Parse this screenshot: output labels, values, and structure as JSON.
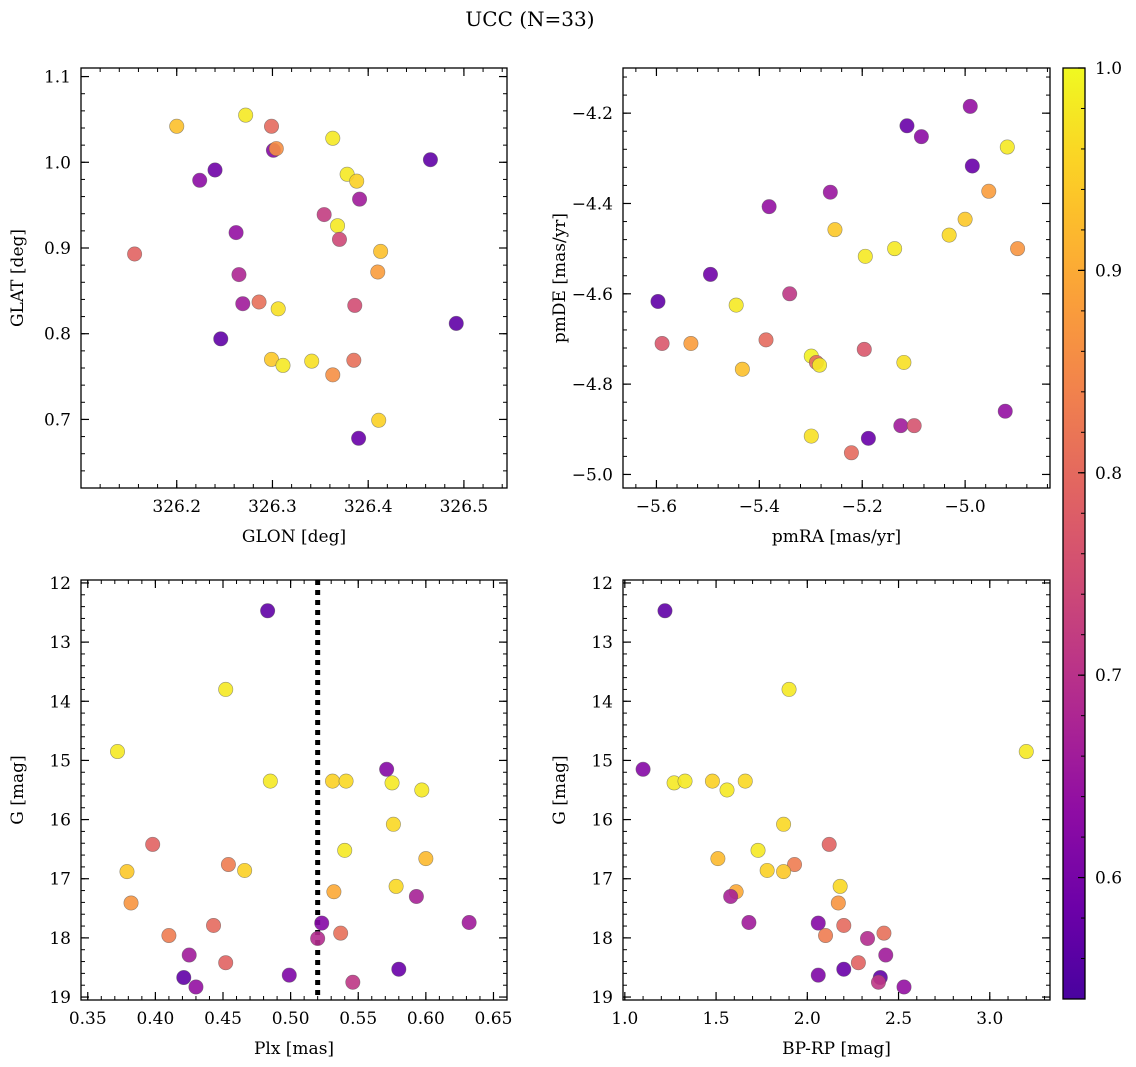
{
  "title": "UCC (N=33)",
  "colorbar": {
    "min": 0.54,
    "max": 1.0,
    "ticks": [
      0.6,
      0.7,
      0.8,
      0.9,
      1.0
    ],
    "tick_labels": [
      "0.6",
      "0.7",
      "0.8",
      "0.9",
      "1.0"
    ],
    "colormap": "plasma"
  },
  "chart_data": [
    {
      "type": "scatter",
      "xlabel": "GLON [deg]",
      "ylabel": "GLAT [deg]",
      "xlim": [
        326.1,
        326.545
      ],
      "ylim": [
        0.62,
        1.11
      ],
      "xticks": [
        326.2,
        326.3,
        326.4,
        326.5
      ],
      "xtick_labels": [
        "326.2",
        "326.3",
        "326.4",
        "326.5"
      ],
      "yticks": [
        0.7,
        0.8,
        0.9,
        1.0,
        1.1
      ],
      "ytick_labels": [
        "0.7",
        "0.8",
        "0.9",
        "1.0",
        "1.1"
      ],
      "grid": false,
      "points": [
        {
          "x": 326.2,
          "y": 1.042,
          "c": 0.93
        },
        {
          "x": 326.272,
          "y": 1.055,
          "c": 0.98
        },
        {
          "x": 326.299,
          "y": 1.042,
          "c": 0.8
        },
        {
          "x": 326.301,
          "y": 1.014,
          "c": 0.62
        },
        {
          "x": 326.304,
          "y": 1.016,
          "c": 0.86
        },
        {
          "x": 326.363,
          "y": 1.028,
          "c": 0.98
        },
        {
          "x": 326.465,
          "y": 1.003,
          "c": 0.57
        },
        {
          "x": 326.224,
          "y": 0.979,
          "c": 0.63
        },
        {
          "x": 326.24,
          "y": 0.991,
          "c": 0.59
        },
        {
          "x": 326.378,
          "y": 0.986,
          "c": 0.98
        },
        {
          "x": 326.388,
          "y": 0.978,
          "c": 0.95
        },
        {
          "x": 326.391,
          "y": 0.957,
          "c": 0.66
        },
        {
          "x": 326.354,
          "y": 0.939,
          "c": 0.72
        },
        {
          "x": 326.368,
          "y": 0.926,
          "c": 0.98
        },
        {
          "x": 326.37,
          "y": 0.91,
          "c": 0.74
        },
        {
          "x": 326.262,
          "y": 0.918,
          "c": 0.64
        },
        {
          "x": 326.156,
          "y": 0.893,
          "c": 0.79
        },
        {
          "x": 326.413,
          "y": 0.896,
          "c": 0.93
        },
        {
          "x": 326.41,
          "y": 0.872,
          "c": 0.88
        },
        {
          "x": 326.265,
          "y": 0.869,
          "c": 0.68
        },
        {
          "x": 326.269,
          "y": 0.835,
          "c": 0.66
        },
        {
          "x": 326.286,
          "y": 0.837,
          "c": 0.81
        },
        {
          "x": 326.306,
          "y": 0.829,
          "c": 0.97
        },
        {
          "x": 326.386,
          "y": 0.833,
          "c": 0.75
        },
        {
          "x": 326.492,
          "y": 0.812,
          "c": 0.57
        },
        {
          "x": 326.246,
          "y": 0.794,
          "c": 0.57
        },
        {
          "x": 326.299,
          "y": 0.77,
          "c": 0.94
        },
        {
          "x": 326.311,
          "y": 0.763,
          "c": 0.98
        },
        {
          "x": 326.341,
          "y": 0.768,
          "c": 0.97
        },
        {
          "x": 326.385,
          "y": 0.769,
          "c": 0.81
        },
        {
          "x": 326.363,
          "y": 0.752,
          "c": 0.86
        },
        {
          "x": 326.411,
          "y": 0.699,
          "c": 0.95
        },
        {
          "x": 326.39,
          "y": 0.678,
          "c": 0.58
        }
      ]
    },
    {
      "type": "scatter",
      "xlabel": "pmRA [mas/yr]",
      "ylabel": "pmDE [mas/yr]",
      "xlim": [
        -5.665,
        -4.835
      ],
      "ylim": [
        -5.03,
        -4.1
      ],
      "xticks": [
        -5.6,
        -5.4,
        -5.2,
        -5.0
      ],
      "xtick_labels": [
        "−5.6",
        "−5.4",
        "−5.2",
        "−5.0"
      ],
      "yticks": [
        -5.0,
        -4.8,
        -4.6,
        -4.4,
        -4.2
      ],
      "ytick_labels": [
        "−5.0",
        "−4.8",
        "−4.6",
        "−4.4",
        "−4.2"
      ],
      "grid": false,
      "points": [
        {
          "x": -4.99,
          "y": -4.185,
          "c": 0.64
        },
        {
          "x": -5.113,
          "y": -4.228,
          "c": 0.58
        },
        {
          "x": -5.085,
          "y": -4.252,
          "c": 0.63
        },
        {
          "x": -4.918,
          "y": -4.275,
          "c": 0.98
        },
        {
          "x": -4.986,
          "y": -4.317,
          "c": 0.58
        },
        {
          "x": -4.954,
          "y": -4.373,
          "c": 0.88
        },
        {
          "x": -5.262,
          "y": -4.375,
          "c": 0.65
        },
        {
          "x": -5.381,
          "y": -4.407,
          "c": 0.64
        },
        {
          "x": -5.0,
          "y": -4.435,
          "c": 0.94
        },
        {
          "x": -5.253,
          "y": -4.458,
          "c": 0.94
        },
        {
          "x": -5.031,
          "y": -4.47,
          "c": 0.96
        },
        {
          "x": -5.137,
          "y": -4.5,
          "c": 0.98
        },
        {
          "x": -4.898,
          "y": -4.5,
          "c": 0.87
        },
        {
          "x": -5.194,
          "y": -4.517,
          "c": 0.98
        },
        {
          "x": -5.495,
          "y": -4.557,
          "c": 0.59
        },
        {
          "x": -5.341,
          "y": -4.6,
          "c": 0.71
        },
        {
          "x": -5.597,
          "y": -4.617,
          "c": 0.57
        },
        {
          "x": -5.445,
          "y": -4.625,
          "c": 0.98
        },
        {
          "x": -5.387,
          "y": -4.702,
          "c": 0.8
        },
        {
          "x": -5.589,
          "y": -4.71,
          "c": 0.77
        },
        {
          "x": -5.533,
          "y": -4.71,
          "c": 0.88
        },
        {
          "x": -5.196,
          "y": -4.723,
          "c": 0.77
        },
        {
          "x": -5.299,
          "y": -4.738,
          "c": 0.99
        },
        {
          "x": -5.289,
          "y": -4.752,
          "c": 0.8
        },
        {
          "x": -5.119,
          "y": -4.752,
          "c": 0.97
        },
        {
          "x": -5.283,
          "y": -4.758,
          "c": 0.98
        },
        {
          "x": -5.433,
          "y": -4.767,
          "c": 0.93
        },
        {
          "x": -4.922,
          "y": -4.86,
          "c": 0.64
        },
        {
          "x": -5.125,
          "y": -4.892,
          "c": 0.66
        },
        {
          "x": -5.099,
          "y": -4.892,
          "c": 0.76
        },
        {
          "x": -5.299,
          "y": -4.915,
          "c": 0.97
        },
        {
          "x": -5.188,
          "y": -4.92,
          "c": 0.58
        },
        {
          "x": -5.221,
          "y": -4.952,
          "c": 0.8
        }
      ]
    },
    {
      "type": "scatter",
      "xlabel": "Plx [mas]",
      "ylabel": "G [mag]",
      "xlim": [
        0.345,
        0.66
      ],
      "ylim": [
        19.05,
        11.95
      ],
      "y_inverted": true,
      "xticks": [
        0.35,
        0.4,
        0.45,
        0.5,
        0.55,
        0.6,
        0.65
      ],
      "xtick_labels": [
        "0.35",
        "0.40",
        "0.45",
        "0.50",
        "0.55",
        "0.60",
        "0.65"
      ],
      "yticks": [
        12,
        13,
        14,
        15,
        16,
        17,
        18,
        19
      ],
      "ytick_labels": [
        "12",
        "13",
        "14",
        "15",
        "16",
        "17",
        "18",
        "19"
      ],
      "vline": {
        "x": 0.52,
        "style": "dotted"
      },
      "grid": false,
      "points": [
        {
          "x": 0.483,
          "y": 12.47,
          "c": 0.57
        },
        {
          "x": 0.452,
          "y": 13.8,
          "c": 0.98
        },
        {
          "x": 0.372,
          "y": 14.85,
          "c": 0.98
        },
        {
          "x": 0.571,
          "y": 15.15,
          "c": 0.62
        },
        {
          "x": 0.485,
          "y": 15.35,
          "c": 0.98
        },
        {
          "x": 0.531,
          "y": 15.35,
          "c": 0.95
        },
        {
          "x": 0.541,
          "y": 15.35,
          "c": 0.96
        },
        {
          "x": 0.575,
          "y": 15.38,
          "c": 0.98
        },
        {
          "x": 0.597,
          "y": 15.5,
          "c": 0.98
        },
        {
          "x": 0.576,
          "y": 16.08,
          "c": 0.96
        },
        {
          "x": 0.398,
          "y": 16.42,
          "c": 0.79
        },
        {
          "x": 0.54,
          "y": 16.52,
          "c": 0.98
        },
        {
          "x": 0.6,
          "y": 16.66,
          "c": 0.92
        },
        {
          "x": 0.454,
          "y": 16.76,
          "c": 0.83
        },
        {
          "x": 0.466,
          "y": 16.86,
          "c": 0.95
        },
        {
          "x": 0.379,
          "y": 16.88,
          "c": 0.94
        },
        {
          "x": 0.578,
          "y": 17.13,
          "c": 0.96
        },
        {
          "x": 0.532,
          "y": 17.22,
          "c": 0.9
        },
        {
          "x": 0.593,
          "y": 17.3,
          "c": 0.67
        },
        {
          "x": 0.382,
          "y": 17.41,
          "c": 0.87
        },
        {
          "x": 0.632,
          "y": 17.74,
          "c": 0.66
        },
        {
          "x": 0.523,
          "y": 17.75,
          "c": 0.62
        },
        {
          "x": 0.443,
          "y": 17.79,
          "c": 0.8
        },
        {
          "x": 0.537,
          "y": 17.92,
          "c": 0.81
        },
        {
          "x": 0.41,
          "y": 17.96,
          "c": 0.83
        },
        {
          "x": 0.52,
          "y": 18.01,
          "c": 0.69
        },
        {
          "x": 0.425,
          "y": 18.29,
          "c": 0.66
        },
        {
          "x": 0.452,
          "y": 18.42,
          "c": 0.79
        },
        {
          "x": 0.58,
          "y": 18.53,
          "c": 0.58
        },
        {
          "x": 0.499,
          "y": 18.63,
          "c": 0.61
        },
        {
          "x": 0.421,
          "y": 18.67,
          "c": 0.57
        },
        {
          "x": 0.546,
          "y": 18.75,
          "c": 0.71
        },
        {
          "x": 0.43,
          "y": 18.83,
          "c": 0.64
        }
      ]
    },
    {
      "type": "scatter",
      "xlabel": "BP-RP [mag]",
      "ylabel": "G [mag]",
      "xlim": [
        0.99,
        3.33
      ],
      "ylim": [
        19.05,
        11.95
      ],
      "y_inverted": true,
      "xticks": [
        1.0,
        1.5,
        2.0,
        2.5,
        3.0
      ],
      "xtick_labels": [
        "1.0",
        "1.5",
        "2.0",
        "2.5",
        "3.0"
      ],
      "yticks": [
        12,
        13,
        14,
        15,
        16,
        17,
        18,
        19
      ],
      "ytick_labels": [
        "12",
        "13",
        "14",
        "15",
        "16",
        "17",
        "18",
        "19"
      ],
      "grid": false,
      "points": [
        {
          "x": 1.22,
          "y": 12.47,
          "c": 0.57
        },
        {
          "x": 1.9,
          "y": 13.8,
          "c": 0.98
        },
        {
          "x": 3.2,
          "y": 14.85,
          "c": 0.98
        },
        {
          "x": 1.1,
          "y": 15.15,
          "c": 0.62
        },
        {
          "x": 1.27,
          "y": 15.38,
          "c": 0.98
        },
        {
          "x": 1.33,
          "y": 15.35,
          "c": 0.98
        },
        {
          "x": 1.48,
          "y": 15.35,
          "c": 0.95
        },
        {
          "x": 1.56,
          "y": 15.5,
          "c": 0.98
        },
        {
          "x": 1.66,
          "y": 15.35,
          "c": 0.96
        },
        {
          "x": 1.87,
          "y": 16.08,
          "c": 0.96
        },
        {
          "x": 2.12,
          "y": 16.42,
          "c": 0.79
        },
        {
          "x": 1.73,
          "y": 16.52,
          "c": 0.98
        },
        {
          "x": 1.51,
          "y": 16.66,
          "c": 0.92
        },
        {
          "x": 1.93,
          "y": 16.76,
          "c": 0.83
        },
        {
          "x": 1.78,
          "y": 16.86,
          "c": 0.95
        },
        {
          "x": 1.87,
          "y": 16.88,
          "c": 0.94
        },
        {
          "x": 2.18,
          "y": 17.13,
          "c": 0.96
        },
        {
          "x": 1.61,
          "y": 17.22,
          "c": 0.9
        },
        {
          "x": 1.58,
          "y": 17.3,
          "c": 0.67
        },
        {
          "x": 2.17,
          "y": 17.41,
          "c": 0.87
        },
        {
          "x": 1.68,
          "y": 17.74,
          "c": 0.66
        },
        {
          "x": 2.06,
          "y": 17.75,
          "c": 0.62
        },
        {
          "x": 2.2,
          "y": 17.79,
          "c": 0.8
        },
        {
          "x": 2.42,
          "y": 17.92,
          "c": 0.81
        },
        {
          "x": 2.1,
          "y": 17.96,
          "c": 0.83
        },
        {
          "x": 2.33,
          "y": 18.01,
          "c": 0.69
        },
        {
          "x": 2.43,
          "y": 18.29,
          "c": 0.66
        },
        {
          "x": 2.28,
          "y": 18.42,
          "c": 0.79
        },
        {
          "x": 2.2,
          "y": 18.53,
          "c": 0.58
        },
        {
          "x": 2.06,
          "y": 18.63,
          "c": 0.61
        },
        {
          "x": 2.4,
          "y": 18.67,
          "c": 0.57
        },
        {
          "x": 2.39,
          "y": 18.75,
          "c": 0.71
        },
        {
          "x": 2.53,
          "y": 18.83,
          "c": 0.64
        }
      ]
    }
  ]
}
